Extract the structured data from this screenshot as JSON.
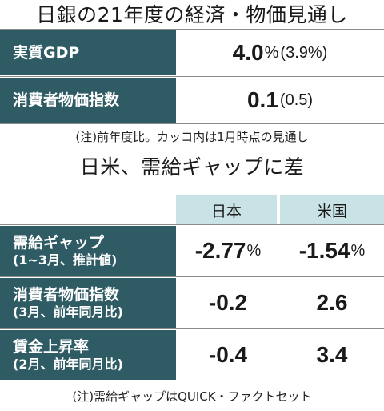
{
  "title1": "日銀の21年度の経済・物価見通し",
  "table1": {
    "rows": [
      {
        "label": "実質GDP",
        "value": "4.0",
        "unit": "%",
        "prev": "(3.9%)"
      },
      {
        "label": "消費者物価指数",
        "value": "0.1",
        "unit": "",
        "prev": "(0.5)"
      }
    ],
    "note": "(注)前年度比。カッコ内は1月時点の見通し"
  },
  "title2": "日米、需給ギャップに差",
  "table2": {
    "col_headers": [
      "日本",
      "米国"
    ],
    "rows": [
      {
        "label": "需給ギャップ",
        "sublabel": "(1~3月、推計値)",
        "jp": "-2.77",
        "jp_unit": "%",
        "us": "-1.54",
        "us_unit": "%"
      },
      {
        "label": "消費者物価指数",
        "sublabel": "(3月、前年同月比)",
        "jp": "-0.2",
        "jp_unit": "",
        "us": "2.6",
        "us_unit": ""
      },
      {
        "label": "賃金上昇率",
        "sublabel": "(2月、前年同月比)",
        "jp": "-0.4",
        "jp_unit": "",
        "us": "3.4",
        "us_unit": ""
      }
    ],
    "note": "(注)需給ギャップはQUICK・ファクトセット"
  },
  "colors": {
    "label_bg": "#2f5c64",
    "header_bg": "#c8e2e6",
    "label_text": "#ffffff"
  }
}
